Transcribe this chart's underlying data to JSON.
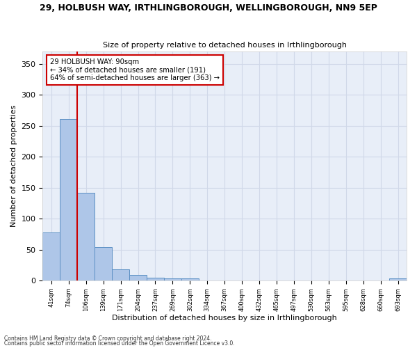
{
  "title": "29, HOLBUSH WAY, IRTHLINGBOROUGH, WELLINGBOROUGH, NN9 5EP",
  "subtitle": "Size of property relative to detached houses in Irthlingborough",
  "xlabel": "Distribution of detached houses by size in Irthlingborough",
  "ylabel": "Number of detached properties",
  "bin_labels": [
    "41sqm",
    "74sqm",
    "106sqm",
    "139sqm",
    "171sqm",
    "204sqm",
    "237sqm",
    "269sqm",
    "302sqm",
    "334sqm",
    "367sqm",
    "400sqm",
    "432sqm",
    "465sqm",
    "497sqm",
    "530sqm",
    "563sqm",
    "595sqm",
    "628sqm",
    "660sqm",
    "693sqm"
  ],
  "bar_values": [
    78,
    261,
    142,
    54,
    18,
    9,
    5,
    4,
    4,
    0,
    0,
    0,
    0,
    0,
    0,
    0,
    0,
    0,
    0,
    0,
    4
  ],
  "bar_color": "#aec6e8",
  "bar_edge_color": "#5a8fc3",
  "grid_color": "#d0d8e8",
  "background_color": "#e8eef8",
  "annotation_line1": "29 HOLBUSH WAY: 90sqm",
  "annotation_line2": "← 34% of detached houses are smaller (191)",
  "annotation_line3": "64% of semi-detached houses are larger (363) →",
  "annotation_box_color": "#cc0000",
  "red_line_x": 1.5,
  "ylim": [
    0,
    370
  ],
  "yticks": [
    0,
    50,
    100,
    150,
    200,
    250,
    300,
    350
  ],
  "footer_line1": "Contains HM Land Registry data © Crown copyright and database right 2024.",
  "footer_line2": "Contains public sector information licensed under the Open Government Licence v3.0."
}
